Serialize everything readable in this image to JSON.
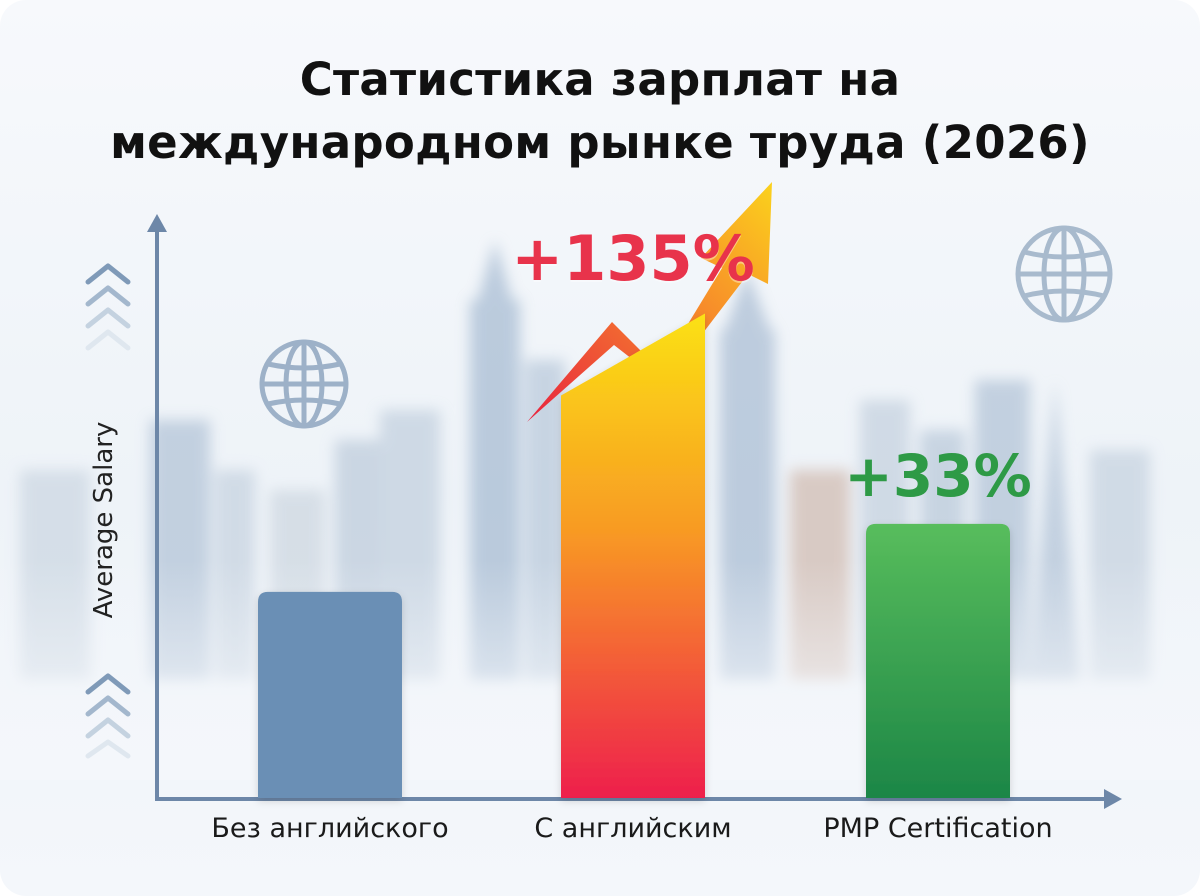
{
  "title_lines": [
    "Статистика зарплат на",
    "международном рынке труда (2026)"
  ],
  "chart_data": {
    "type": "bar",
    "title": "Статистика зарплат на международном рынке труда (2026)",
    "ylabel": "Average Salary",
    "xlabel": "",
    "categories": [
      "Без английского",
      "С английским",
      "PMP Certification"
    ],
    "values": [
      100,
      235,
      133
    ],
    "ylim": [
      0,
      260
    ],
    "annotations": [
      {
        "category": "С английским",
        "text": "+135%"
      },
      {
        "category": "PMP Certification",
        "text": "+33%"
      }
    ],
    "bar_colors": [
      "#6b8fb5",
      "gradient #f9d423 → #f0234a",
      "gradient #4fb85a → #1f8a47"
    ],
    "grid": false,
    "legend": "none"
  },
  "colors": {
    "axis": "#6d87a8",
    "bar_base": "#6b8fb5",
    "growth_red": "#e8334b",
    "growth_green": "#2e9a46",
    "background": "#f2f6fa"
  },
  "icons": [
    "globe-icon",
    "globe-icon",
    "chevrons-up-icon",
    "chevrons-up-icon",
    "trend-arrow-icon"
  ]
}
